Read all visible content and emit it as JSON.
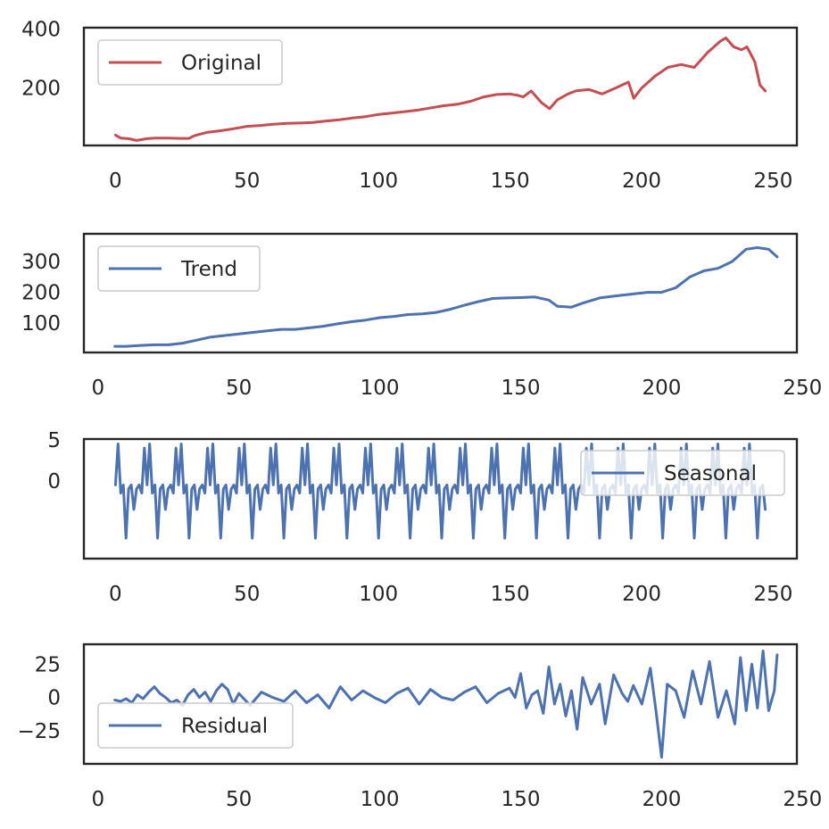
{
  "chart_data": [
    {
      "type": "line",
      "title": "",
      "xlabel": "",
      "ylabel": "",
      "xlim": [
        -12,
        259
      ],
      "ylim": [
        5,
        405
      ],
      "xticks": [
        0,
        50,
        100,
        150,
        200,
        250
      ],
      "yticks": [
        200,
        400
      ],
      "grid": false,
      "legend_position": "upper-left",
      "series": [
        {
          "name": "Original",
          "color": "#c44e52",
          "x": [
            0,
            2,
            5,
            8,
            12,
            15,
            20,
            25,
            28,
            30,
            35,
            40,
            45,
            50,
            55,
            60,
            65,
            70,
            75,
            80,
            85,
            90,
            95,
            100,
            105,
            110,
            115,
            120,
            125,
            130,
            135,
            140,
            145,
            150,
            153,
            155,
            158,
            162,
            165,
            168,
            172,
            175,
            180,
            185,
            190,
            195,
            197,
            200,
            205,
            210,
            215,
            220,
            225,
            230,
            232,
            235,
            238,
            240,
            243,
            245,
            247
          ],
          "values": [
            40,
            30,
            28,
            22,
            28,
            30,
            30,
            29,
            29,
            38,
            50,
            55,
            62,
            70,
            73,
            77,
            80,
            81,
            83,
            88,
            92,
            98,
            103,
            110,
            115,
            120,
            125,
            133,
            140,
            145,
            155,
            170,
            178,
            180,
            175,
            170,
            190,
            150,
            130,
            160,
            180,
            190,
            195,
            180,
            200,
            220,
            165,
            200,
            240,
            270,
            280,
            270,
            320,
            360,
            370,
            340,
            330,
            340,
            290,
            210,
            190
          ]
        }
      ]
    },
    {
      "type": "line",
      "title": "",
      "xlabel": "",
      "ylabel": "",
      "xlim": [
        -5,
        248
      ],
      "ylim": [
        5,
        390
      ],
      "xticks": [
        0,
        50,
        100,
        150,
        200,
        250
      ],
      "yticks": [
        100,
        200,
        300
      ],
      "grid": false,
      "legend_position": "upper-left",
      "series": [
        {
          "name": "Trend",
          "color": "#4c72b0",
          "x": [
            6,
            10,
            15,
            20,
            25,
            30,
            35,
            40,
            45,
            50,
            55,
            60,
            65,
            70,
            75,
            80,
            85,
            90,
            95,
            100,
            105,
            110,
            115,
            120,
            125,
            130,
            135,
            140,
            145,
            150,
            155,
            160,
            163,
            168,
            172,
            178,
            185,
            190,
            195,
            200,
            205,
            210,
            215,
            220,
            225,
            230,
            234,
            238,
            241
          ],
          "values": [
            25,
            25,
            28,
            30,
            30,
            35,
            45,
            55,
            60,
            65,
            70,
            75,
            80,
            80,
            85,
            90,
            98,
            105,
            110,
            118,
            122,
            128,
            130,
            135,
            145,
            158,
            170,
            180,
            182,
            183,
            185,
            175,
            155,
            152,
            165,
            182,
            190,
            195,
            200,
            200,
            215,
            250,
            270,
            278,
            300,
            340,
            345,
            340,
            315
          ]
        }
      ]
    },
    {
      "type": "line",
      "title": "",
      "xlabel": "",
      "ylabel": "",
      "xlim": [
        -12,
        259
      ],
      "ylim": [
        -9.5,
        5.1
      ],
      "xticks": [
        0,
        50,
        100,
        150,
        200,
        250
      ],
      "yticks": [
        0,
        5
      ],
      "grid": false,
      "legend_position": "upper-right",
      "period": 12,
      "series": [
        {
          "name": "Seasonal",
          "color": "#4c72b0",
          "x_start": 0,
          "x_end": 247,
          "pattern": [
            -0.5,
            4.5,
            -1.5,
            -0.5,
            -7.0,
            -1.0,
            -0.5,
            -3.5,
            -1.0,
            -0.5,
            -1.5,
            4.0
          ]
        }
      ]
    },
    {
      "type": "line",
      "title": "",
      "xlabel": "",
      "ylabel": "",
      "xlim": [
        -5,
        248
      ],
      "ylim": [
        -50,
        40
      ],
      "xticks": [
        0,
        50,
        100,
        150,
        200,
        250
      ],
      "yticks": [
        -25,
        0,
        25
      ],
      "ytick_labels": [
        "−25",
        "0",
        "25"
      ],
      "grid": false,
      "legend_position": "lower-left",
      "series": [
        {
          "name": "Residual",
          "color": "#4c72b0",
          "x": [
            6,
            8,
            10,
            12,
            14,
            16,
            18,
            20,
            22,
            24,
            26,
            28,
            30,
            32,
            34,
            36,
            38,
            40,
            42,
            44,
            46,
            48,
            50,
            54,
            58,
            62,
            66,
            70,
            74,
            78,
            82,
            86,
            90,
            94,
            98,
            102,
            106,
            110,
            114,
            118,
            122,
            126,
            130,
            134,
            138,
            142,
            146,
            148,
            150,
            152,
            154,
            156,
            158,
            160,
            162,
            164,
            166,
            168,
            170,
            172,
            175,
            178,
            180,
            183,
            186,
            188,
            190,
            193,
            196,
            198,
            200,
            202,
            205,
            208,
            211,
            214,
            217,
            220,
            223,
            226,
            228,
            230,
            232,
            234,
            236,
            238,
            240,
            241
          ],
          "values": [
            -2,
            -3,
            -1,
            -4,
            2,
            -1,
            4,
            8,
            3,
            0,
            -4,
            -2,
            -6,
            2,
            6,
            0,
            4,
            -3,
            5,
            10,
            6,
            -5,
            3,
            -6,
            4,
            0,
            -3,
            5,
            -4,
            2,
            -8,
            8,
            -2,
            5,
            0,
            -4,
            3,
            7,
            -5,
            6,
            0,
            -2,
            4,
            8,
            -4,
            3,
            7,
            0,
            18,
            -8,
            2,
            5,
            -12,
            23,
            -5,
            10,
            -14,
            5,
            -24,
            15,
            -5,
            10,
            -20,
            17,
            3,
            -3,
            9,
            -5,
            22,
            -10,
            -45,
            10,
            5,
            -15,
            20,
            -5,
            27,
            -15,
            5,
            -20,
            30,
            -10,
            25,
            -8,
            35,
            -10,
            5,
            32
          ]
        }
      ]
    }
  ]
}
